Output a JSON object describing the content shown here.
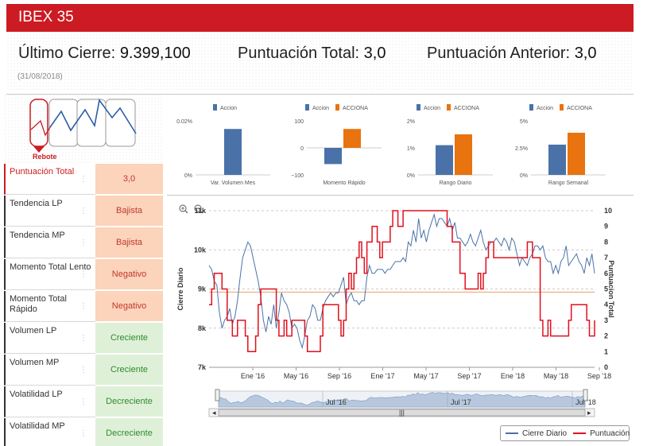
{
  "app": {
    "title": "IBEX 35"
  },
  "summary": {
    "last_close_label": "Último Cierre:",
    "last_close_value": "9.399,100",
    "total_score_label": "Puntuación Total:",
    "total_score_value": "3,0",
    "prev_score_label": "Puntuación Anterior:",
    "prev_score_value": "3,0",
    "date": "(31/08/2018)"
  },
  "pattern": {
    "label": "Rebote"
  },
  "signals": [
    {
      "label": "Puntuación Total",
      "value": "3,0",
      "type": "neg",
      "active": true
    },
    {
      "label": "Tendencia LP",
      "value": "Bajista",
      "type": "neg",
      "active": false
    },
    {
      "label": "Tendencia MP",
      "value": "Bajista",
      "type": "neg",
      "active": false
    },
    {
      "label": "Momento Total Lento",
      "value": "Negativo",
      "type": "neg",
      "active": false
    },
    {
      "label": "Momento Total Rápido",
      "value": "Negativo",
      "type": "neg",
      "active": false
    },
    {
      "label": "Volumen LP",
      "value": "Creciente",
      "type": "pos",
      "active": false
    },
    {
      "label": "Volumen MP",
      "value": "Creciente",
      "type": "pos",
      "active": false
    },
    {
      "label": "Volatilidad LP",
      "value": "Decreciente",
      "type": "pos",
      "active": false
    },
    {
      "label": "Volatilidad MP",
      "value": "Decreciente",
      "type": "pos",
      "active": false
    }
  ],
  "colors": {
    "brand_red": "#cc1b22",
    "accion_blue": "#4a72a8",
    "acciona_orange": "#e8730f",
    "neg_bg": "#fcd3bb",
    "pos_bg": "#dff0d8"
  },
  "chart_data": [
    {
      "type": "bar",
      "title": "Var. Volumen Mes",
      "series": [
        {
          "name": "Accion",
          "values": [
            0.017
          ]
        }
      ],
      "ylim": [
        0,
        0.02
      ],
      "ticks": [
        "0.02%",
        "0%"
      ]
    },
    {
      "type": "bar",
      "title": "Momento Rápido",
      "series": [
        {
          "name": "Accion",
          "values": [
            -60
          ]
        },
        {
          "name": "ACCIONA",
          "values": [
            70
          ]
        }
      ],
      "ylim": [
        -100,
        100
      ],
      "ticks": [
        "100",
        "0",
        "−100"
      ]
    },
    {
      "type": "bar",
      "title": "Rango Diario",
      "series": [
        {
          "name": "Accion",
          "values": [
            1.1
          ]
        },
        {
          "name": "ACCIONA",
          "values": [
            1.5
          ]
        }
      ],
      "ylim": [
        0,
        2
      ],
      "ticks": [
        "2%",
        "1%",
        "0%"
      ]
    },
    {
      "type": "bar",
      "title": "Rango Semanal",
      "series": [
        {
          "name": "Accion",
          "values": [
            2.8
          ]
        },
        {
          "name": "ACCIONA",
          "values": [
            3.9
          ]
        }
      ],
      "ylim": [
        0,
        5
      ],
      "ticks": [
        "5%",
        "2.5%",
        "0%"
      ]
    },
    {
      "type": "line",
      "ylabel_left": "Cierre Diario",
      "ylabel_right": "Puntuacion Total",
      "y_left_ticks": [
        "11k",
        "10k",
        "9k",
        "8k",
        "7k"
      ],
      "y_left_range": [
        7000,
        11000
      ],
      "y_right_ticks": [
        "10",
        "9",
        "8",
        "7",
        "6",
        "5",
        "4",
        "3",
        "2",
        "1",
        "0"
      ],
      "y_right_range": [
        0,
        10
      ],
      "x_ticks": [
        "Ene '16",
        "May '16",
        "Sep '16",
        "Ene '17",
        "May '17",
        "Sep '17",
        "Ene '18",
        "May '18",
        "Sep '18"
      ],
      "navigator_labels": [
        "Jul '16",
        "Jul '17",
        "Jul '18"
      ],
      "reference_line": 4.8,
      "series": [
        {
          "name": "Cierre Diario",
          "color": "#4a72a8",
          "values": [
            9600,
            9500,
            9200,
            9100,
            8400,
            8000,
            8200,
            8300,
            8500,
            8100,
            8300,
            8700,
            9300,
            9800,
            10000,
            10200,
            10100,
            9800,
            9500,
            9200,
            8800,
            8200,
            7900,
            8300,
            8100,
            8600,
            8000,
            8400,
            8900,
            8700,
            8600,
            8400,
            8000,
            8100,
            8000,
            7700,
            7500,
            7800,
            8200,
            8300,
            8600,
            8500,
            8200,
            8200,
            8500,
            8700,
            8800,
            8900,
            8800,
            8900,
            8900,
            9100,
            9300,
            8600,
            8800,
            8900,
            8700,
            8700,
            8600,
            8700,
            8700,
            9300,
            9600,
            9400,
            9400,
            9500,
            9500,
            9500,
            9400,
            9500,
            9500,
            9600,
            9700,
            9700,
            9700,
            9800,
            9700,
            10200,
            10100,
            10500,
            10200,
            10800,
            10300,
            10500,
            10200,
            10500,
            10700,
            10900,
            10600,
            10800,
            10800,
            10700,
            10600,
            10800,
            10500,
            10700,
            10300,
            10300,
            10200,
            10100,
            10200,
            10400,
            10200,
            10100,
            10300,
            10500,
            10200,
            10000,
            10100,
            10200,
            10200,
            10300,
            10200,
            10100,
            10300,
            10200,
            10000,
            10300,
            10200,
            9900,
            9600,
            9800,
            9700,
            9600,
            9800,
            9900,
            10100,
            10100,
            10000,
            10100,
            9800,
            9700,
            9700,
            9400,
            9600,
            9400,
            9700,
            9800,
            10100,
            9600,
            9700,
            9800,
            9900,
            9700,
            9600,
            9400,
            9800,
            9600,
            9900,
            9400
          ]
        },
        {
          "name": "Puntuación",
          "color": "#e0101e",
          "values": [
            4,
            5,
            6,
            6,
            6,
            5,
            5,
            3,
            3,
            2,
            2,
            3,
            3,
            3,
            2,
            1,
            1,
            1,
            2,
            4,
            5,
            5,
            5,
            5,
            5,
            5,
            3,
            2,
            2,
            3,
            2,
            2,
            3,
            3,
            3,
            3,
            3,
            2,
            1,
            1,
            1,
            1,
            1,
            2,
            4,
            4,
            4,
            4,
            4,
            4,
            3,
            2,
            3,
            5,
            6,
            5,
            6,
            7,
            8,
            7,
            6,
            8,
            8,
            9,
            9,
            8,
            7,
            8,
            8,
            8,
            9,
            10,
            10,
            9,
            9,
            10,
            10,
            10,
            10,
            10,
            10,
            10,
            10,
            10,
            10,
            10,
            10,
            10,
            10,
            10,
            10,
            10,
            9,
            9,
            8,
            8,
            8,
            6,
            6,
            5,
            5,
            5,
            5,
            5,
            6,
            5,
            6,
            7,
            8,
            8,
            7,
            7,
            7,
            7,
            7,
            7,
            7,
            7,
            7,
            7,
            7,
            7,
            7,
            8,
            8,
            7,
            7,
            7,
            3,
            2,
            2,
            3,
            2,
            2,
            2,
            2,
            2,
            2,
            2,
            3,
            4,
            4,
            4,
            4,
            4,
            4,
            3,
            2,
            2,
            3
          ]
        }
      ]
    }
  ],
  "legend": {
    "items": [
      "Cierre Diario",
      "Puntuación"
    ]
  }
}
